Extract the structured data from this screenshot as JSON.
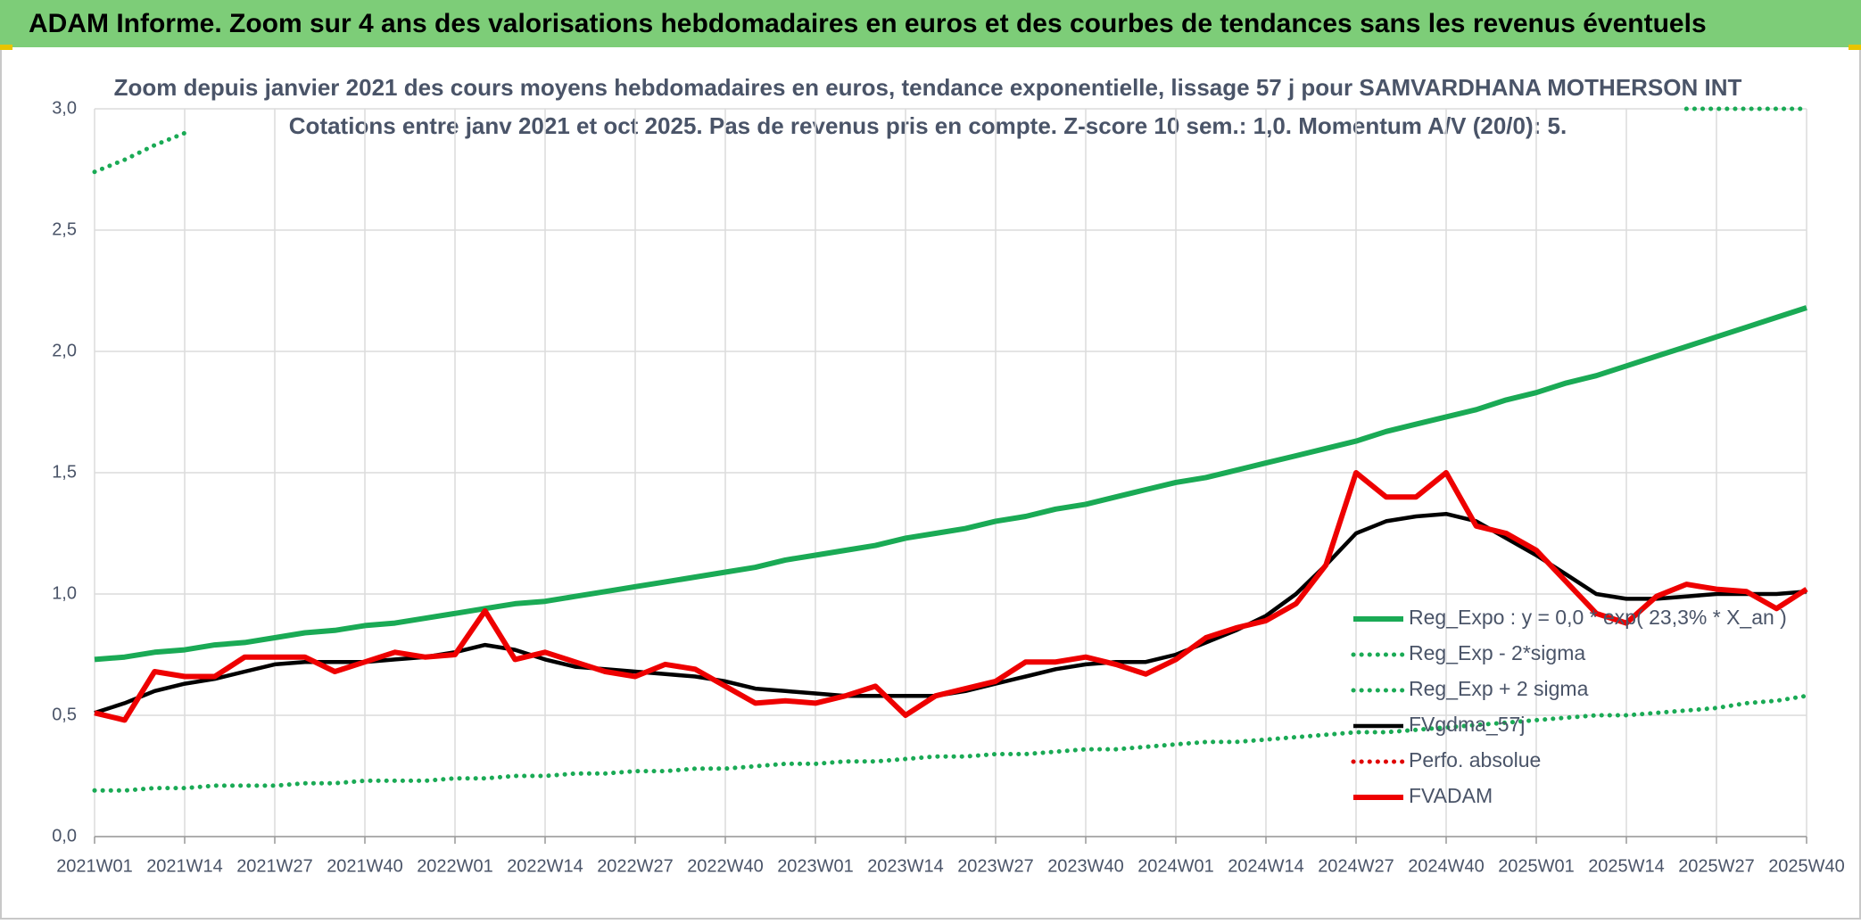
{
  "header": {
    "title": "ADAM Informe. Zoom sur 4 ans des valorisations hebdomadaires en euros et des courbes de tendances sans les revenus éventuels"
  },
  "chart_data": {
    "type": "line",
    "title": "Zoom depuis janvier 2021 des cours moyens hebdomadaires en euros, tendance exponentielle, lissage 57 j pour SAMVARDHANA MOTHERSON INT",
    "subtitle": "Cotations entre janv 2021 et oct 2025. Pas de revenus pris en compte. Z-score 10 sem.: 1,0. Momentum A/V (20/0): 5.",
    "categories": [
      "2021W01",
      null,
      null,
      "2021W14",
      null,
      null,
      "2021W27",
      null,
      null,
      "2021W40",
      null,
      null,
      "2022W01",
      null,
      null,
      "2022W14",
      null,
      null,
      "2022W27",
      null,
      null,
      "2022W40",
      null,
      null,
      "2023W01",
      null,
      null,
      "2023W14",
      null,
      null,
      "2023W27",
      null,
      null,
      "2023W40",
      null,
      null,
      "2024W01",
      null,
      null,
      "2024W14",
      null,
      null,
      "2024W27",
      null,
      null,
      "2024W40",
      null,
      null,
      "2025W01",
      null,
      null,
      "2025W14",
      null,
      null,
      "2025W27",
      null,
      null,
      "2025W40"
    ],
    "ylim": [
      0,
      3
    ],
    "yticks": [
      {
        "value": 0,
        "label": "0,0"
      },
      {
        "value": 0.5,
        "label": "0,5"
      },
      {
        "value": 1,
        "label": "1,0"
      },
      {
        "value": 1.5,
        "label": "1,5"
      },
      {
        "value": 2,
        "label": "2,0"
      },
      {
        "value": 2.5,
        "label": "2,5"
      },
      {
        "value": 3,
        "label": "3,0"
      }
    ],
    "grid": true,
    "legend": "right",
    "series": [
      {
        "name": "Reg_Expo : y = 0,0 * exp( 23,3% *  X_an )",
        "color": "#1aaa55",
        "style": "solid",
        "values": [
          0.73,
          0.74,
          0.76,
          0.77,
          0.79,
          0.8,
          0.82,
          0.84,
          0.85,
          0.87,
          0.88,
          0.9,
          0.92,
          0.94,
          0.96,
          0.97,
          0.99,
          1.01,
          1.03,
          1.05,
          1.07,
          1.09,
          1.11,
          1.14,
          1.16,
          1.18,
          1.2,
          1.23,
          1.25,
          1.27,
          1.3,
          1.32,
          1.35,
          1.37,
          1.4,
          1.43,
          1.46,
          1.48,
          1.51,
          1.54,
          1.57,
          1.6,
          1.63,
          1.67,
          1.7,
          1.73,
          1.76,
          1.8,
          1.83,
          1.87,
          1.9,
          1.94,
          1.98,
          2.02,
          2.06,
          2.1,
          2.14,
          2.18
        ]
      },
      {
        "name": "Reg_Exp - 2*sigma",
        "color": "#1aaa55",
        "style": "dotted",
        "values": [
          0.19,
          0.19,
          0.2,
          0.2,
          0.21,
          0.21,
          0.21,
          0.22,
          0.22,
          0.23,
          0.23,
          0.23,
          0.24,
          0.24,
          0.25,
          0.25,
          0.26,
          0.26,
          0.27,
          0.27,
          0.28,
          0.28,
          0.29,
          0.3,
          0.3,
          0.31,
          0.31,
          0.32,
          0.33,
          0.33,
          0.34,
          0.34,
          0.35,
          0.36,
          0.36,
          0.37,
          0.38,
          0.39,
          0.39,
          0.4,
          0.41,
          0.42,
          0.43,
          0.43,
          0.44,
          0.45,
          0.46,
          0.47,
          0.48,
          0.49,
          0.5,
          0.5,
          0.51,
          0.52,
          0.53,
          0.55,
          0.56,
          0.58
        ]
      },
      {
        "name": "Reg_Exp + 2 sigma",
        "color": "#1aaa55",
        "style": "dotted",
        "values": [
          2.74,
          2.79,
          2.85,
          2.9,
          null,
          null,
          null,
          null,
          null,
          null,
          null,
          null,
          null,
          null,
          null,
          null,
          null,
          null,
          null,
          null,
          null,
          null,
          null,
          null,
          null,
          null,
          null,
          null,
          null,
          null,
          null,
          null,
          null,
          null,
          null,
          null,
          null,
          null,
          null,
          null,
          null,
          null,
          null,
          null,
          null,
          null,
          null,
          null,
          null,
          null,
          null,
          null,
          null,
          3.0,
          3.0,
          3.0,
          3.0,
          3.0
        ]
      },
      {
        "name": "FVgdma_57j",
        "color": "#000000",
        "style": "solid",
        "values": [
          0.51,
          0.55,
          0.6,
          0.63,
          0.65,
          0.68,
          0.71,
          0.72,
          0.72,
          0.72,
          0.73,
          0.74,
          0.76,
          0.79,
          0.77,
          0.73,
          0.7,
          0.69,
          0.68,
          0.67,
          0.66,
          0.64,
          0.61,
          0.6,
          0.59,
          0.58,
          0.58,
          0.58,
          0.58,
          0.6,
          0.63,
          0.66,
          0.69,
          0.71,
          0.72,
          0.72,
          0.75,
          0.8,
          0.85,
          0.91,
          1.0,
          1.12,
          1.25,
          1.3,
          1.32,
          1.33,
          1.3,
          1.23,
          1.16,
          1.08,
          1.0,
          0.98,
          0.98,
          0.99,
          1.0,
          1.0,
          1.0,
          1.01
        ]
      },
      {
        "name": "Perfo. absolue",
        "color": "#e00000",
        "style": "dotted",
        "values": [
          null,
          null,
          null,
          null,
          null,
          null,
          null,
          null,
          null,
          null,
          null,
          null,
          null,
          null,
          null,
          null,
          null,
          null,
          null,
          null,
          null,
          null,
          null,
          null,
          null,
          null,
          null,
          null,
          null,
          null,
          null,
          null,
          null,
          null,
          null,
          null,
          null,
          null,
          null,
          null,
          null,
          null,
          null,
          null,
          null,
          null,
          null,
          null,
          null,
          null,
          null,
          null,
          null,
          null,
          null,
          null,
          null,
          null
        ]
      },
      {
        "name": "FVADAM",
        "color": "#ee0000",
        "style": "solid",
        "values": [
          0.51,
          0.48,
          0.68,
          0.66,
          0.66,
          0.74,
          0.74,
          0.74,
          0.68,
          0.72,
          0.76,
          0.74,
          0.75,
          0.93,
          0.73,
          0.76,
          0.72,
          0.68,
          0.66,
          0.71,
          0.69,
          0.62,
          0.55,
          0.56,
          0.55,
          0.58,
          0.62,
          0.5,
          0.58,
          0.61,
          0.64,
          0.72,
          0.72,
          0.74,
          0.71,
          0.67,
          0.73,
          0.82,
          0.86,
          0.89,
          0.96,
          1.12,
          1.5,
          1.4,
          1.4,
          1.5,
          1.28,
          1.25,
          1.18,
          1.05,
          0.92,
          0.88,
          0.99,
          1.04,
          1.02,
          1.01,
          0.94,
          1.02
        ]
      }
    ]
  }
}
